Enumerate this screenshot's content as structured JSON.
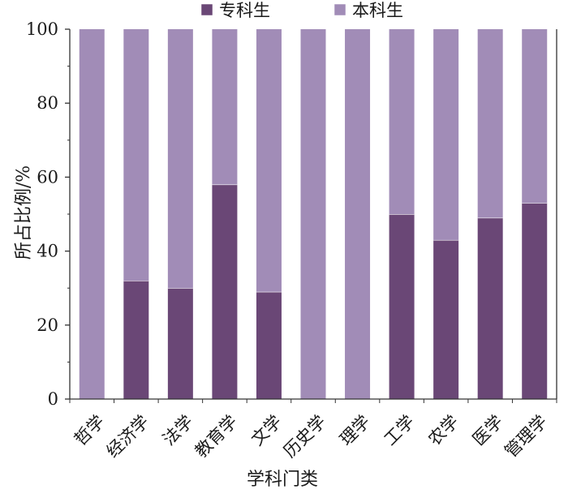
{
  "chart_data": {
    "type": "bar",
    "stacked": true,
    "xlabel": "学科门类",
    "ylabel": "所占比例/%",
    "ylim": [
      0,
      100
    ],
    "yticks": [
      0,
      20,
      40,
      60,
      80,
      100
    ],
    "categories": [
      "哲学",
      "经济学",
      "法学",
      "教育学",
      "文学",
      "历史学",
      "理学",
      "工学",
      "农学",
      "医学",
      "管理学"
    ],
    "series": [
      {
        "name": "专科生",
        "color": "#6a4776",
        "values": [
          0,
          32,
          30,
          58,
          29,
          0,
          0,
          50,
          43,
          49,
          53
        ]
      },
      {
        "name": "本科生",
        "color": "#a18cb7",
        "values": [
          100,
          68,
          70,
          42,
          71,
          100,
          100,
          50,
          57,
          51,
          47
        ]
      }
    ],
    "legend_position": "top-center",
    "grid": false
  }
}
